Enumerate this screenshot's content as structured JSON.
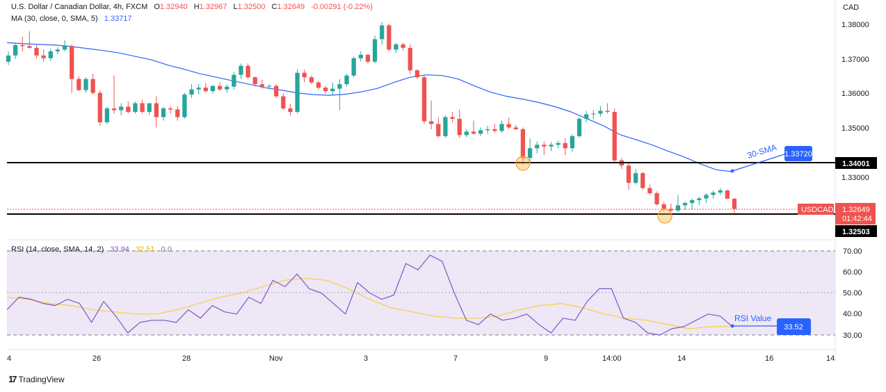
{
  "header": {
    "symbol_title": "U.S. Dollar / Canadian Dollar, 4h, FXCM",
    "open_label": "O",
    "open": "1.32940",
    "high_label": "H",
    "high": "1.32967",
    "low_label": "L",
    "low": "1.32500",
    "close_label": "C",
    "close": "1.32649",
    "change": "-0.00291 (-0.22%)",
    "ma_label": "MA (30, close, 0, SMA, 5)",
    "ma_value": "1.33717",
    "rsi_label": "RSI (14, close, SMA, 14, 2)",
    "rsi_value": "33.94",
    "rsi_ma_value": "32.51",
    "rsi_extra": "0 0"
  },
  "price_axis": {
    "currency": "CAD",
    "ticks": [
      "1.38000",
      "1.37000",
      "1.36000",
      "1.35000",
      "1.33000"
    ]
  },
  "rsi_axis": {
    "ticks": [
      "70.00",
      "60.00",
      "50.00",
      "40.00",
      "30.00"
    ]
  },
  "time_axis": {
    "ticks": [
      "4",
      "26",
      "28",
      "Nov",
      "3",
      "7",
      "9",
      "14:00",
      "14",
      "16",
      "14"
    ]
  },
  "labels": {
    "resistance": "1.34001",
    "support": "1.32503",
    "sma_badge": "1.33720",
    "sma_callout": "30-SMA",
    "symbol_badge": "USDCAD",
    "price_badge": "1.32649",
    "countdown": "01:42:44",
    "rsi_badge": "33.52",
    "rsi_callout": "RSI Value"
  },
  "branding": {
    "name": "TradingView"
  },
  "colors": {
    "up": "#26a69a",
    "down": "#ef5350",
    "ma": "#2962ff",
    "rsi": "#7e57c2",
    "rsi_ma": "#f7d23e",
    "rsi_band": "#ede7f6",
    "badge_blue": "#2962ff",
    "badge_red": "#ef5350",
    "level_line": "#000000",
    "marker": "#f5a623"
  },
  "chart_data": {
    "type": "candlestick",
    "timeframe": "4h",
    "price_ylim": [
      1.3235,
      1.3835
    ],
    "levels": [
      1.34001,
      1.32503
    ],
    "candles": [
      {
        "o": 1.369,
        "h": 1.372,
        "l": 1.368,
        "c": 1.3708
      },
      {
        "o": 1.3708,
        "h": 1.3745,
        "l": 1.3698,
        "c": 1.3738
      },
      {
        "o": 1.3738,
        "h": 1.3762,
        "l": 1.372,
        "c": 1.3735
      },
      {
        "o": 1.3735,
        "h": 1.3778,
        "l": 1.3728,
        "c": 1.373
      },
      {
        "o": 1.373,
        "h": 1.3738,
        "l": 1.37,
        "c": 1.3708
      },
      {
        "o": 1.3708,
        "h": 1.3725,
        "l": 1.369,
        "c": 1.37
      },
      {
        "o": 1.37,
        "h": 1.3728,
        "l": 1.3692,
        "c": 1.372
      },
      {
        "o": 1.372,
        "h": 1.3732,
        "l": 1.3712,
        "c": 1.3725
      },
      {
        "o": 1.3725,
        "h": 1.3752,
        "l": 1.372,
        "c": 1.3735
      },
      {
        "o": 1.3735,
        "h": 1.374,
        "l": 1.36,
        "c": 1.364
      },
      {
        "o": 1.364,
        "h": 1.3648,
        "l": 1.3605,
        "c": 1.3608
      },
      {
        "o": 1.3608,
        "h": 1.3645,
        "l": 1.36,
        "c": 1.364
      },
      {
        "o": 1.364,
        "h": 1.3655,
        "l": 1.3595,
        "c": 1.36
      },
      {
        "o": 1.36,
        "h": 1.3608,
        "l": 1.3505,
        "c": 1.3515
      },
      {
        "o": 1.3515,
        "h": 1.356,
        "l": 1.351,
        "c": 1.3555
      },
      {
        "o": 1.3555,
        "h": 1.365,
        "l": 1.354,
        "c": 1.355
      },
      {
        "o": 1.355,
        "h": 1.357,
        "l": 1.3535,
        "c": 1.356
      },
      {
        "o": 1.356,
        "h": 1.3575,
        "l": 1.354,
        "c": 1.3545
      },
      {
        "o": 1.3545,
        "h": 1.3575,
        "l": 1.354,
        "c": 1.357
      },
      {
        "o": 1.357,
        "h": 1.358,
        "l": 1.354,
        "c": 1.3545
      },
      {
        "o": 1.3545,
        "h": 1.357,
        "l": 1.3535,
        "c": 1.357
      },
      {
        "o": 1.357,
        "h": 1.359,
        "l": 1.35,
        "c": 1.353
      },
      {
        "o": 1.353,
        "h": 1.356,
        "l": 1.352,
        "c": 1.3555
      },
      {
        "o": 1.3555,
        "h": 1.3562,
        "l": 1.354,
        "c": 1.3552
      },
      {
        "o": 1.3552,
        "h": 1.3562,
        "l": 1.352,
        "c": 1.353
      },
      {
        "o": 1.353,
        "h": 1.36,
        "l": 1.3525,
        "c": 1.3595
      },
      {
        "o": 1.3595,
        "h": 1.3625,
        "l": 1.3585,
        "c": 1.361
      },
      {
        "o": 1.361,
        "h": 1.3625,
        "l": 1.3595,
        "c": 1.3615
      },
      {
        "o": 1.3615,
        "h": 1.3628,
        "l": 1.36,
        "c": 1.3605
      },
      {
        "o": 1.3605,
        "h": 1.3622,
        "l": 1.3598,
        "c": 1.362
      },
      {
        "o": 1.362,
        "h": 1.363,
        "l": 1.3605,
        "c": 1.361
      },
      {
        "o": 1.361,
        "h": 1.3625,
        "l": 1.36,
        "c": 1.3618
      },
      {
        "o": 1.3618,
        "h": 1.366,
        "l": 1.361,
        "c": 1.3652
      },
      {
        "o": 1.3652,
        "h": 1.3685,
        "l": 1.364,
        "c": 1.3678
      },
      {
        "o": 1.3678,
        "h": 1.3685,
        "l": 1.364,
        "c": 1.3645
      },
      {
        "o": 1.3645,
        "h": 1.3648,
        "l": 1.3618,
        "c": 1.3625
      },
      {
        "o": 1.3625,
        "h": 1.3638,
        "l": 1.3612,
        "c": 1.3618
      },
      {
        "o": 1.3618,
        "h": 1.3625,
        "l": 1.361,
        "c": 1.362
      },
      {
        "o": 1.362,
        "h": 1.3625,
        "l": 1.3585,
        "c": 1.359
      },
      {
        "o": 1.359,
        "h": 1.3598,
        "l": 1.355,
        "c": 1.3555
      },
      {
        "o": 1.3555,
        "h": 1.3568,
        "l": 1.3535,
        "c": 1.3545
      },
      {
        "o": 1.3545,
        "h": 1.3668,
        "l": 1.354,
        "c": 1.3658
      },
      {
        "o": 1.3658,
        "h": 1.3668,
        "l": 1.363,
        "c": 1.3645
      },
      {
        "o": 1.3645,
        "h": 1.365,
        "l": 1.3625,
        "c": 1.363
      },
      {
        "o": 1.363,
        "h": 1.3635,
        "l": 1.3608,
        "c": 1.3615
      },
      {
        "o": 1.3615,
        "h": 1.362,
        "l": 1.3598,
        "c": 1.3605
      },
      {
        "o": 1.3605,
        "h": 1.363,
        "l": 1.3595,
        "c": 1.3612
      },
      {
        "o": 1.3612,
        "h": 1.364,
        "l": 1.355,
        "c": 1.3625
      },
      {
        "o": 1.3625,
        "h": 1.3655,
        "l": 1.3618,
        "c": 1.365
      },
      {
        "o": 1.365,
        "h": 1.3705,
        "l": 1.3645,
        "c": 1.37
      },
      {
        "o": 1.37,
        "h": 1.372,
        "l": 1.369,
        "c": 1.371
      },
      {
        "o": 1.371,
        "h": 1.3712,
        "l": 1.3685,
        "c": 1.369
      },
      {
        "o": 1.369,
        "h": 1.3765,
        "l": 1.3685,
        "c": 1.3755
      },
      {
        "o": 1.3755,
        "h": 1.3805,
        "l": 1.374,
        "c": 1.3795
      },
      {
        "o": 1.3795,
        "h": 1.38,
        "l": 1.372,
        "c": 1.3725
      },
      {
        "o": 1.3725,
        "h": 1.3745,
        "l": 1.3715,
        "c": 1.374
      },
      {
        "o": 1.374,
        "h": 1.3745,
        "l": 1.3722,
        "c": 1.373
      },
      {
        "o": 1.373,
        "h": 1.374,
        "l": 1.3655,
        "c": 1.3665
      },
      {
        "o": 1.3665,
        "h": 1.3668,
        "l": 1.364,
        "c": 1.3645
      },
      {
        "o": 1.3645,
        "h": 1.365,
        "l": 1.351,
        "c": 1.3518
      },
      {
        "o": 1.3518,
        "h": 1.3578,
        "l": 1.3495,
        "c": 1.351
      },
      {
        "o": 1.351,
        "h": 1.353,
        "l": 1.347,
        "c": 1.3475
      },
      {
        "o": 1.3475,
        "h": 1.3535,
        "l": 1.347,
        "c": 1.353
      },
      {
        "o": 1.353,
        "h": 1.3545,
        "l": 1.3515,
        "c": 1.3525
      },
      {
        "o": 1.3525,
        "h": 1.3552,
        "l": 1.347,
        "c": 1.3478
      },
      {
        "o": 1.3478,
        "h": 1.3495,
        "l": 1.3472,
        "c": 1.3488
      },
      {
        "o": 1.3488,
        "h": 1.352,
        "l": 1.348,
        "c": 1.3482
      },
      {
        "o": 1.3482,
        "h": 1.35,
        "l": 1.3475,
        "c": 1.3492
      },
      {
        "o": 1.3492,
        "h": 1.3505,
        "l": 1.3482,
        "c": 1.3495
      },
      {
        "o": 1.3495,
        "h": 1.351,
        "l": 1.3485,
        "c": 1.349
      },
      {
        "o": 1.349,
        "h": 1.352,
        "l": 1.3485,
        "c": 1.351
      },
      {
        "o": 1.351,
        "h": 1.3528,
        "l": 1.3495,
        "c": 1.35
      },
      {
        "o": 1.35,
        "h": 1.3508,
        "l": 1.3492,
        "c": 1.3495
      },
      {
        "o": 1.3495,
        "h": 1.35,
        "l": 1.3392,
        "c": 1.3412
      },
      {
        "o": 1.3412,
        "h": 1.3468,
        "l": 1.3398,
        "c": 1.344
      },
      {
        "o": 1.344,
        "h": 1.346,
        "l": 1.3425,
        "c": 1.345
      },
      {
        "o": 1.345,
        "h": 1.346,
        "l": 1.342,
        "c": 1.3445
      },
      {
        "o": 1.3445,
        "h": 1.3458,
        "l": 1.3432,
        "c": 1.345
      },
      {
        "o": 1.345,
        "h": 1.3462,
        "l": 1.344,
        "c": 1.3455
      },
      {
        "o": 1.3455,
        "h": 1.3468,
        "l": 1.342,
        "c": 1.344
      },
      {
        "o": 1.344,
        "h": 1.348,
        "l": 1.343,
        "c": 1.3475
      },
      {
        "o": 1.3475,
        "h": 1.353,
        "l": 1.347,
        "c": 1.3525
      },
      {
        "o": 1.3525,
        "h": 1.3548,
        "l": 1.3515,
        "c": 1.3538
      },
      {
        "o": 1.3538,
        "h": 1.355,
        "l": 1.3525,
        "c": 1.354
      },
      {
        "o": 1.354,
        "h": 1.3562,
        "l": 1.3532,
        "c": 1.3548
      },
      {
        "o": 1.3548,
        "h": 1.357,
        "l": 1.354,
        "c": 1.3545
      },
      {
        "o": 1.3545,
        "h": 1.3555,
        "l": 1.34,
        "c": 1.3405
      },
      {
        "o": 1.3405,
        "h": 1.3412,
        "l": 1.338,
        "c": 1.339
      },
      {
        "o": 1.339,
        "h": 1.34,
        "l": 1.332,
        "c": 1.334
      },
      {
        "o": 1.334,
        "h": 1.338,
        "l": 1.3335,
        "c": 1.3368
      },
      {
        "o": 1.3368,
        "h": 1.3372,
        "l": 1.332,
        "c": 1.3325
      },
      {
        "o": 1.3325,
        "h": 1.3335,
        "l": 1.3305,
        "c": 1.331
      },
      {
        "o": 1.331,
        "h": 1.3315,
        "l": 1.3275,
        "c": 1.3278
      },
      {
        "o": 1.3278,
        "h": 1.3285,
        "l": 1.3258,
        "c": 1.3265
      },
      {
        "o": 1.3265,
        "h": 1.328,
        "l": 1.325,
        "c": 1.326
      },
      {
        "o": 1.326,
        "h": 1.3305,
        "l": 1.3255,
        "c": 1.3275
      },
      {
        "o": 1.3275,
        "h": 1.3285,
        "l": 1.3262,
        "c": 1.3282
      },
      {
        "o": 1.3282,
        "h": 1.3295,
        "l": 1.3262,
        "c": 1.329
      },
      {
        "o": 1.329,
        "h": 1.33,
        "l": 1.3275,
        "c": 1.3295
      },
      {
        "o": 1.3295,
        "h": 1.331,
        "l": 1.3282,
        "c": 1.3305
      },
      {
        "o": 1.3305,
        "h": 1.3318,
        "l": 1.3295,
        "c": 1.3312
      },
      {
        "o": 1.3312,
        "h": 1.3325,
        "l": 1.3305,
        "c": 1.3318
      },
      {
        "o": 1.3318,
        "h": 1.332,
        "l": 1.3295,
        "c": 1.3294
      },
      {
        "o": 1.3294,
        "h": 1.3297,
        "l": 1.325,
        "c": 1.3265
      }
    ],
    "ma_series": [
      1.3745,
      1.3742,
      1.374,
      1.3738,
      1.3734,
      1.3728,
      1.3722,
      1.3715,
      1.3705,
      1.3695,
      1.368,
      1.3668,
      1.3655,
      1.3645,
      1.3635,
      1.3625,
      1.3615,
      1.3608,
      1.36,
      1.3595,
      1.3593,
      1.3596,
      1.3603,
      1.3613,
      1.363,
      1.3645,
      1.3652,
      1.365,
      1.364,
      1.362,
      1.3602,
      1.359,
      1.3582,
      1.3572,
      1.356,
      1.3545,
      1.3525,
      1.3505,
      1.348,
      1.3465,
      1.345,
      1.3432,
      1.3415,
      1.3395,
      1.3378,
      1.3372
    ],
    "rsi_ylim": [
      25,
      72
    ],
    "rsi_levels": [
      70,
      50,
      30
    ],
    "rsi_series": [
      42,
      48,
      47,
      45,
      44,
      47,
      45,
      36,
      46,
      39,
      31,
      36,
      37,
      37,
      36,
      42,
      38,
      44,
      41,
      40,
      48,
      45,
      56,
      53,
      59,
      52,
      50,
      45,
      40,
      55,
      50,
      47,
      49,
      64,
      61,
      68,
      65,
      50,
      37,
      35,
      40,
      37,
      38,
      40,
      35,
      31,
      38,
      37,
      46,
      52,
      52,
      38,
      36,
      31,
      30,
      33,
      34,
      37,
      40,
      39,
      34
    ],
    "rsi_ma_series": [
      48,
      47,
      45,
      44,
      42,
      41,
      40,
      40,
      42,
      45,
      48,
      50,
      53,
      56,
      57,
      56,
      52,
      47,
      43,
      41,
      39,
      38,
      38,
      39,
      42,
      44,
      45,
      43,
      40,
      38,
      37,
      35,
      33,
      34,
      34
    ]
  }
}
